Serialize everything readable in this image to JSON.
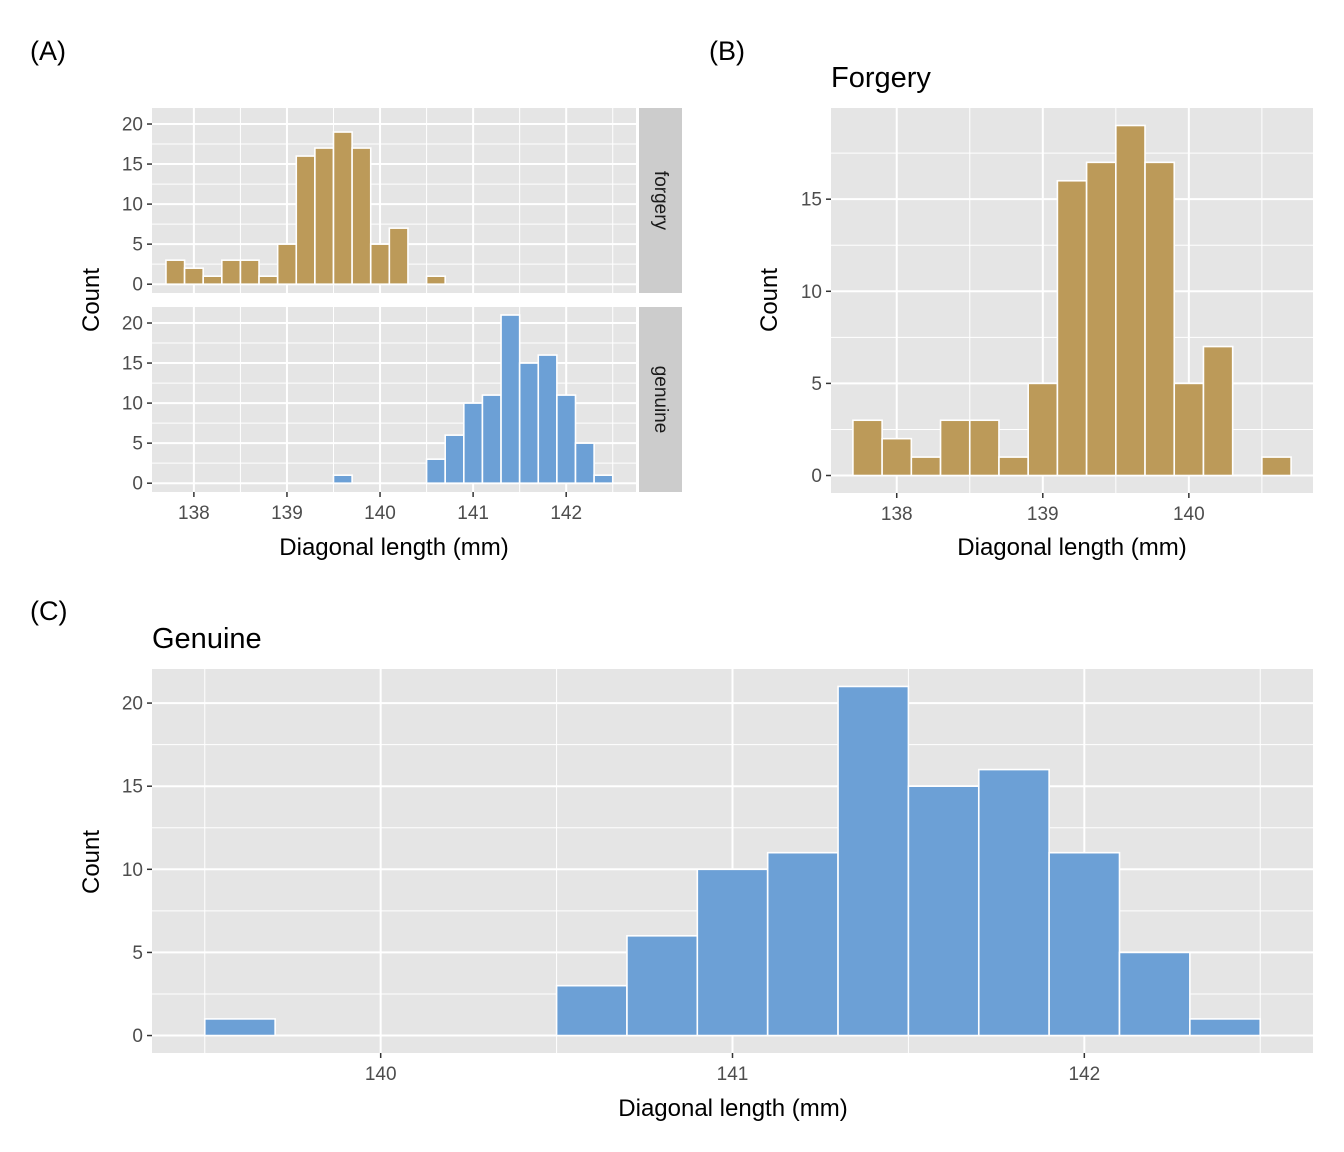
{
  "panel_labels": {
    "a": "(A)",
    "b": "(B)",
    "c": "(C)"
  },
  "colors": {
    "forgery": "#BC9A59",
    "genuine": "#6CA0D6",
    "panel_bg": "#E5E5E5",
    "strip_bg": "#CCCCCC",
    "grid": "#FFFFFF"
  },
  "chart_data": [
    {
      "id": "A",
      "type": "bar",
      "subtype": "faceted-histogram",
      "title": "",
      "xlabel": "Diagonal length (mm)",
      "ylabel": "Count",
      "xlim": [
        137.55,
        142.75
      ],
      "ylim": [
        0,
        22
      ],
      "x_ticks": [
        138,
        139,
        140,
        141,
        142
      ],
      "y_ticks": [
        0,
        5,
        10,
        15,
        20
      ],
      "binwidth": 0.2,
      "grid": true,
      "facets": [
        {
          "strip_label": "forgery",
          "color": "#BC9A59",
          "bin_centers": [
            137.8,
            138.0,
            138.2,
            138.4,
            138.6,
            138.8,
            139.0,
            139.2,
            139.4,
            139.6,
            139.8,
            140.0,
            140.2,
            140.4,
            140.6
          ],
          "counts": [
            3,
            2,
            1,
            3,
            3,
            1,
            5,
            16,
            17,
            19,
            17,
            5,
            7,
            0,
            1
          ]
        },
        {
          "strip_label": "genuine",
          "color": "#6CA0D6",
          "bin_centers": [
            139.6,
            139.8,
            140.0,
            140.2,
            140.4,
            140.6,
            140.8,
            141.0,
            141.2,
            141.4,
            141.6,
            141.8,
            142.0,
            142.2,
            142.4
          ],
          "counts": [
            1,
            0,
            0,
            0,
            0,
            3,
            6,
            10,
            11,
            21,
            15,
            16,
            11,
            5,
            1
          ]
        }
      ]
    },
    {
      "id": "B",
      "type": "bar",
      "subtype": "histogram",
      "title": "Forgery",
      "xlabel": "Diagonal length (mm)",
      "ylabel": "Count",
      "xlim": [
        137.55,
        140.85
      ],
      "ylim": [
        -0.95,
        19.95
      ],
      "x_ticks": [
        138,
        139,
        140
      ],
      "y_ticks": [
        0,
        5,
        10,
        15
      ],
      "binwidth": 0.2,
      "grid": true,
      "color": "#BC9A59",
      "bin_centers": [
        137.8,
        138.0,
        138.2,
        138.4,
        138.6,
        138.8,
        139.0,
        139.2,
        139.4,
        139.6,
        139.8,
        140.0,
        140.2,
        140.4,
        140.6
      ],
      "counts": [
        3,
        2,
        1,
        3,
        3,
        1,
        5,
        16,
        17,
        19,
        17,
        5,
        7,
        0,
        1
      ]
    },
    {
      "id": "C",
      "type": "bar",
      "subtype": "histogram",
      "title": "Genuine",
      "xlabel": "Diagonal length (mm)",
      "ylabel": "Count",
      "xlim": [
        139.35,
        142.65
      ],
      "ylim": [
        -1.05,
        22.05
      ],
      "x_ticks": [
        140,
        141,
        142
      ],
      "y_ticks": [
        0,
        5,
        10,
        15,
        20
      ],
      "binwidth": 0.2,
      "grid": true,
      "color": "#6CA0D6",
      "bin_centers": [
        139.6,
        139.8,
        140.0,
        140.2,
        140.4,
        140.6,
        140.8,
        141.0,
        141.2,
        141.4,
        141.6,
        141.8,
        142.0,
        142.2,
        142.4
      ],
      "counts": [
        1,
        0,
        0,
        0,
        0,
        3,
        6,
        10,
        11,
        21,
        15,
        16,
        11,
        5,
        1
      ]
    }
  ]
}
